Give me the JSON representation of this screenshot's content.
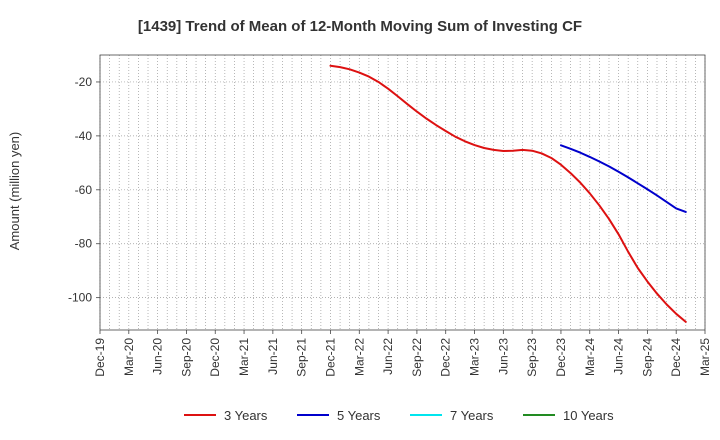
{
  "chart_data": {
    "type": "line",
    "title": "[1439]  Trend of Mean of 12-Month Moving Sum of Investing CF",
    "xlabel": "",
    "ylabel": "Amount (million yen)",
    "ylim": [
      -112,
      -10
    ],
    "yticks": [
      -20,
      -40,
      -60,
      -80,
      -100
    ],
    "grid": true,
    "legend_position": "bottom",
    "x_tick_labels": [
      "Dec-19",
      "Mar-20",
      "Jun-20",
      "Sep-20",
      "Dec-20",
      "Mar-21",
      "Jun-21",
      "Sep-21",
      "Dec-21",
      "Mar-22",
      "Jun-22",
      "Sep-22",
      "Dec-22",
      "Mar-23",
      "Jun-23",
      "Sep-23",
      "Dec-23",
      "Mar-24",
      "Jun-24",
      "Sep-24",
      "Dec-24",
      "Mar-25"
    ],
    "series": [
      {
        "name": "3 Years",
        "color": "#dd1111",
        "start_index": 24,
        "values": [
          -14,
          -14.5,
          -15.3,
          -16.5,
          -18,
          -20,
          -22.5,
          -25.3,
          -28.2,
          -31,
          -33.6,
          -36,
          -38.2,
          -40.3,
          -42,
          -43.4,
          -44.5,
          -45.2,
          -45.6,
          -45.5,
          -45.2,
          -45.5,
          -46.5,
          -48.2,
          -50.7,
          -53.8,
          -57.3,
          -61.3,
          -65.8,
          -70.8,
          -76.5,
          -83,
          -89,
          -94,
          -98.5,
          -102.5,
          -106,
          -109
        ]
      },
      {
        "name": "5 Years",
        "color": "#0000cc",
        "start_index": 48,
        "values": [
          -43.5,
          -44.8,
          -46.2,
          -47.8,
          -49.5,
          -51.3,
          -53.3,
          -55.4,
          -57.6,
          -59.8,
          -62.1,
          -64.5,
          -66.9,
          -68.2
        ]
      },
      {
        "name": "7 Years",
        "color": "#00e5ee",
        "start_index": 0,
        "values": []
      },
      {
        "name": "10 Years",
        "color": "#228b22",
        "start_index": 0,
        "values": []
      }
    ]
  }
}
